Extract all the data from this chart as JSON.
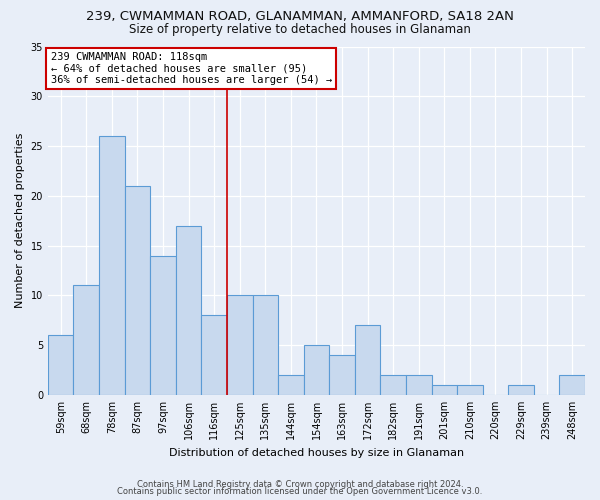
{
  "title_line1": "239, CWMAMMAN ROAD, GLANAMMAN, AMMANFORD, SA18 2AN",
  "title_line2": "Size of property relative to detached houses in Glanaman",
  "xlabel": "Distribution of detached houses by size in Glanaman",
  "ylabel": "Number of detached properties",
  "categories": [
    "59sqm",
    "68sqm",
    "78sqm",
    "87sqm",
    "97sqm",
    "106sqm",
    "116sqm",
    "125sqm",
    "135sqm",
    "144sqm",
    "154sqm",
    "163sqm",
    "172sqm",
    "182sqm",
    "191sqm",
    "201sqm",
    "210sqm",
    "220sqm",
    "229sqm",
    "239sqm",
    "248sqm"
  ],
  "values": [
    6,
    11,
    26,
    21,
    14,
    17,
    8,
    10,
    10,
    2,
    5,
    4,
    7,
    2,
    2,
    1,
    1,
    0,
    1,
    0,
    2
  ],
  "bar_color": "#c8d9ee",
  "bar_edge_color": "#5b9bd5",
  "vline_x": 6.5,
  "vline_color": "#cc0000",
  "annotation_title": "239 CWMAMMAN ROAD: 118sqm",
  "annotation_line1": "← 64% of detached houses are smaller (95)",
  "annotation_line2": "36% of semi-detached houses are larger (54) →",
  "annotation_box_color": "#ffffff",
  "annotation_box_edge_color": "#cc0000",
  "ylim": [
    0,
    35
  ],
  "yticks": [
    0,
    5,
    10,
    15,
    20,
    25,
    30,
    35
  ],
  "footer_line1": "Contains HM Land Registry data © Crown copyright and database right 2024.",
  "footer_line2": "Contains public sector information licensed under the Open Government Licence v3.0.",
  "background_color": "#e8eef8",
  "grid_color": "#ffffff",
  "title_fontsize": 9.5,
  "subtitle_fontsize": 8.5,
  "axis_label_fontsize": 8,
  "tick_fontsize": 7,
  "annotation_fontsize": 7.5,
  "footer_fontsize": 6
}
